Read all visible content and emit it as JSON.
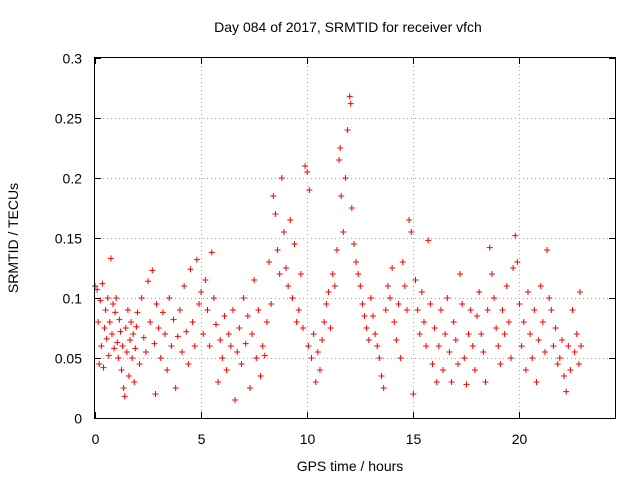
{
  "chart_data": {
    "type": "scatter",
    "title": "Day 084 of 2017, SRMTID for receiver vfch",
    "xlabel": "GPS time / hours",
    "ylabel": "SRMTID / TECUs",
    "xlim": [
      0,
      24.5
    ],
    "ylim": [
      0,
      0.3
    ],
    "xticks": [
      0,
      5,
      10,
      15,
      20
    ],
    "xtick_labels": [
      "0",
      "5",
      "10",
      "15",
      "20"
    ],
    "yticks": [
      0,
      0.05,
      0.1,
      0.15,
      0.2,
      0.25,
      0.3
    ],
    "ytick_labels": [
      "0",
      "0.05",
      "0.1",
      "0.15",
      "0.2",
      "0.25",
      "0.3"
    ],
    "grid": true,
    "marker": "+",
    "color": "#ff0000",
    "series": [
      {
        "name": "SRMTID",
        "points": [
          [
            0.0,
            0.11
          ],
          [
            0.1,
            0.107
          ],
          [
            0.15,
            0.08
          ],
          [
            0.2,
            0.045
          ],
          [
            0.25,
            0.098
          ],
          [
            0.3,
            0.06
          ],
          [
            0.35,
            0.112
          ],
          [
            0.4,
            0.042
          ],
          [
            0.45,
            0.075
          ],
          [
            0.5,
            0.09
          ],
          [
            0.55,
            0.066
          ],
          [
            0.6,
            0.1
          ],
          [
            0.65,
            0.052
          ],
          [
            0.7,
            0.08
          ],
          [
            0.75,
            0.133
          ],
          [
            0.8,
            0.07
          ],
          [
            0.85,
            0.095
          ],
          [
            0.9,
            0.058
          ],
          [
            0.95,
            0.088
          ],
          [
            1.0,
            0.1
          ],
          [
            1.05,
            0.063
          ],
          [
            1.1,
            0.05
          ],
          [
            1.15,
            0.082
          ],
          [
            1.2,
            0.072
          ],
          [
            1.25,
            0.04
          ],
          [
            1.3,
            0.06
          ],
          [
            1.35,
            0.025
          ],
          [
            1.4,
            0.018
          ],
          [
            1.45,
            0.075
          ],
          [
            1.5,
            0.055
          ],
          [
            1.55,
            0.09
          ],
          [
            1.6,
            0.035
          ],
          [
            1.65,
            0.065
          ],
          [
            1.7,
            0.08
          ],
          [
            1.75,
            0.05
          ],
          [
            1.8,
            0.07
          ],
          [
            1.85,
            0.03
          ],
          [
            1.9,
            0.058
          ],
          [
            1.95,
            0.076
          ],
          [
            2.0,
            0.088
          ],
          [
            2.1,
            0.045
          ],
          [
            2.2,
            0.1
          ],
          [
            2.3,
            0.067
          ],
          [
            2.4,
            0.055
          ],
          [
            2.5,
            0.114
          ],
          [
            2.6,
            0.08
          ],
          [
            2.7,
            0.123
          ],
          [
            2.8,
            0.062
          ],
          [
            2.85,
            0.02
          ],
          [
            2.9,
            0.095
          ],
          [
            3.0,
            0.075
          ],
          [
            3.1,
            0.05
          ],
          [
            3.2,
            0.088
          ],
          [
            3.3,
            0.07
          ],
          [
            3.4,
            0.04
          ],
          [
            3.5,
            0.1
          ],
          [
            3.6,
            0.06
          ],
          [
            3.7,
            0.082
          ],
          [
            3.8,
            0.025
          ],
          [
            3.9,
            0.068
          ],
          [
            4.0,
            0.09
          ],
          [
            4.1,
            0.055
          ],
          [
            4.2,
            0.11
          ],
          [
            4.3,
            0.072
          ],
          [
            4.4,
            0.045
          ],
          [
            4.5,
            0.124
          ],
          [
            4.6,
            0.08
          ],
          [
            4.7,
            0.06
          ],
          [
            4.8,
            0.132
          ],
          [
            4.9,
            0.095
          ],
          [
            5.0,
            0.105
          ],
          [
            5.1,
            0.07
          ],
          [
            5.2,
            0.115
          ],
          [
            5.3,
            0.09
          ],
          [
            5.4,
            0.06
          ],
          [
            5.5,
            0.138
          ],
          [
            5.6,
            0.1
          ],
          [
            5.7,
            0.078
          ],
          [
            5.8,
            0.03
          ],
          [
            5.9,
            0.065
          ],
          [
            6.0,
            0.05
          ],
          [
            6.1,
            0.085
          ],
          [
            6.2,
            0.04
          ],
          [
            6.3,
            0.07
          ],
          [
            6.4,
            0.06
          ],
          [
            6.5,
            0.09
          ],
          [
            6.6,
            0.015
          ],
          [
            6.7,
            0.055
          ],
          [
            6.8,
            0.075
          ],
          [
            6.9,
            0.045
          ],
          [
            7.0,
            0.1
          ],
          [
            7.1,
            0.062
          ],
          [
            7.2,
            0.085
          ],
          [
            7.3,
            0.025
          ],
          [
            7.4,
            0.07
          ],
          [
            7.5,
            0.115
          ],
          [
            7.6,
            0.05
          ],
          [
            7.7,
            0.09
          ],
          [
            7.8,
            0.035
          ],
          [
            7.9,
            0.06
          ],
          [
            8.0,
            0.052
          ],
          [
            8.1,
            0.08
          ],
          [
            8.2,
            0.13
          ],
          [
            8.3,
            0.095
          ],
          [
            8.4,
            0.185
          ],
          [
            8.5,
            0.17
          ],
          [
            8.6,
            0.14
          ],
          [
            8.7,
            0.12
          ],
          [
            8.8,
            0.2
          ],
          [
            8.9,
            0.155
          ],
          [
            9.0,
            0.125
          ],
          [
            9.1,
            0.11
          ],
          [
            9.2,
            0.165
          ],
          [
            9.3,
            0.1
          ],
          [
            9.4,
            0.145
          ],
          [
            9.5,
            0.08
          ],
          [
            9.6,
            0.09
          ],
          [
            9.7,
            0.12
          ],
          [
            9.8,
            0.075
          ],
          [
            9.9,
            0.21
          ],
          [
            10.0,
            0.205
          ],
          [
            10.05,
            0.06
          ],
          [
            10.1,
            0.19
          ],
          [
            10.2,
            0.05
          ],
          [
            10.3,
            0.07
          ],
          [
            10.4,
            0.03
          ],
          [
            10.5,
            0.055
          ],
          [
            10.6,
            0.04
          ],
          [
            10.7,
            0.065
          ],
          [
            10.8,
            0.08
          ],
          [
            10.9,
            0.095
          ],
          [
            11.0,
            0.105
          ],
          [
            11.1,
            0.075
          ],
          [
            11.2,
            0.12
          ],
          [
            11.3,
            0.11
          ],
          [
            11.4,
            0.14
          ],
          [
            11.5,
            0.215
          ],
          [
            11.55,
            0.225
          ],
          [
            11.6,
            0.185
          ],
          [
            11.7,
            0.155
          ],
          [
            11.8,
            0.2
          ],
          [
            11.9,
            0.24
          ],
          [
            12.0,
            0.268
          ],
          [
            12.05,
            0.262
          ],
          [
            12.1,
            0.175
          ],
          [
            12.2,
            0.145
          ],
          [
            12.3,
            0.13
          ],
          [
            12.4,
            0.12
          ],
          [
            12.5,
            0.11
          ],
          [
            12.6,
            0.095
          ],
          [
            12.7,
            0.085
          ],
          [
            12.8,
            0.075
          ],
          [
            12.9,
            0.065
          ],
          [
            13.0,
            0.1
          ],
          [
            13.1,
            0.085
          ],
          [
            13.2,
            0.07
          ],
          [
            13.3,
            0.06
          ],
          [
            13.4,
            0.05
          ],
          [
            13.5,
            0.035
          ],
          [
            13.6,
            0.025
          ],
          [
            13.7,
            0.09
          ],
          [
            13.8,
            0.11
          ],
          [
            13.9,
            0.1
          ],
          [
            14.0,
            0.125
          ],
          [
            14.1,
            0.08
          ],
          [
            14.2,
            0.065
          ],
          [
            14.3,
            0.095
          ],
          [
            14.4,
            0.05
          ],
          [
            14.5,
            0.13
          ],
          [
            14.6,
            0.11
          ],
          [
            14.7,
            0.09
          ],
          [
            14.8,
            0.165
          ],
          [
            14.9,
            0.155
          ],
          [
            15.0,
            0.02
          ],
          [
            15.1,
            0.115
          ],
          [
            15.2,
            0.09
          ],
          [
            15.3,
            0.07
          ],
          [
            15.4,
            0.105
          ],
          [
            15.5,
            0.08
          ],
          [
            15.6,
            0.06
          ],
          [
            15.7,
            0.148
          ],
          [
            15.8,
            0.095
          ],
          [
            15.9,
            0.045
          ],
          [
            16.0,
            0.075
          ],
          [
            16.1,
            0.03
          ],
          [
            16.2,
            0.06
          ],
          [
            16.3,
            0.09
          ],
          [
            16.4,
            0.04
          ],
          [
            16.5,
            0.07
          ],
          [
            16.6,
            0.1
          ],
          [
            16.7,
            0.055
          ],
          [
            16.8,
            0.03
          ],
          [
            16.9,
            0.08
          ],
          [
            17.0,
            0.065
          ],
          [
            17.1,
            0.045
          ],
          [
            17.2,
            0.12
          ],
          [
            17.3,
            0.095
          ],
          [
            17.4,
            0.05
          ],
          [
            17.5,
            0.028
          ],
          [
            17.6,
            0.07
          ],
          [
            17.7,
            0.09
          ],
          [
            17.8,
            0.06
          ],
          [
            17.9,
            0.04
          ],
          [
            18.0,
            0.085
          ],
          [
            18.1,
            0.105
          ],
          [
            18.2,
            0.07
          ],
          [
            18.3,
            0.055
          ],
          [
            18.4,
            0.03
          ],
          [
            18.5,
            0.09
          ],
          [
            18.6,
            0.142
          ],
          [
            18.7,
            0.12
          ],
          [
            18.8,
            0.1
          ],
          [
            18.9,
            0.075
          ],
          [
            19.0,
            0.06
          ],
          [
            19.1,
            0.045
          ],
          [
            19.2,
            0.09
          ],
          [
            19.3,
            0.07
          ],
          [
            19.4,
            0.11
          ],
          [
            19.5,
            0.08
          ],
          [
            19.6,
            0.05
          ],
          [
            19.7,
            0.125
          ],
          [
            19.8,
            0.152
          ],
          [
            19.9,
            0.13
          ],
          [
            20.0,
            0.095
          ],
          [
            20.1,
            0.06
          ],
          [
            20.2,
            0.08
          ],
          [
            20.3,
            0.04
          ],
          [
            20.4,
            0.105
          ],
          [
            20.5,
            0.07
          ],
          [
            20.6,
            0.05
          ],
          [
            20.7,
            0.09
          ],
          [
            20.8,
            0.03
          ],
          [
            20.9,
            0.065
          ],
          [
            21.0,
            0.11
          ],
          [
            21.1,
            0.08
          ],
          [
            21.2,
            0.055
          ],
          [
            21.3,
            0.14
          ],
          [
            21.4,
            0.1
          ],
          [
            21.5,
            0.09
          ],
          [
            21.6,
            0.06
          ],
          [
            21.7,
            0.075
          ],
          [
            21.8,
            0.045
          ],
          [
            21.9,
            0.05
          ],
          [
            22.0,
            0.065
          ],
          [
            22.1,
            0.035
          ],
          [
            22.2,
            0.022
          ],
          [
            22.3,
            0.06
          ],
          [
            22.4,
            0.04
          ],
          [
            22.5,
            0.09
          ],
          [
            22.6,
            0.055
          ],
          [
            22.7,
            0.07
          ],
          [
            22.8,
            0.045
          ],
          [
            22.85,
            0.105
          ],
          [
            22.9,
            0.06
          ]
        ]
      }
    ]
  }
}
